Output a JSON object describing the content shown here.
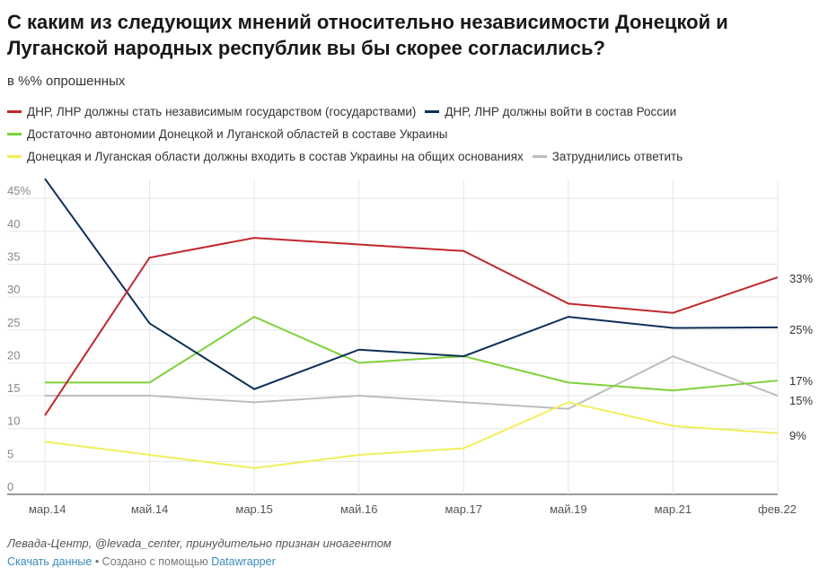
{
  "title": "С каким из следующих мнений относительно независимости Донецкой и Луганской народных республик вы бы скорее согласились?",
  "subtitle": "в %% опрошенных",
  "source": "Левада-Центр, @levada_center, принудительно признан иноагентом",
  "footer": {
    "download": "Скачать данные",
    "sep": " • ",
    "created": "Создано с помощью ",
    "tool": "Datawrapper"
  },
  "chart_data": {
    "type": "line",
    "categories": [
      "мар.14",
      "май.14",
      "мар.15",
      "май.16",
      "мар.17",
      "май.19",
      "мар.21",
      "фев.22"
    ],
    "ylim": [
      0,
      48
    ],
    "yticks": [
      0,
      5,
      10,
      15,
      20,
      25,
      30,
      35,
      40,
      45
    ],
    "ytick_labels": [
      "0",
      "5",
      "10",
      "15",
      "20",
      "25",
      "30",
      "35",
      "40",
      "45%"
    ],
    "series": [
      {
        "name": "ДНР, ЛНР должны стать независимым государством (государствами)",
        "color": "#c0282d",
        "values": [
          12,
          36,
          39,
          38,
          37,
          29,
          27.6,
          33
        ],
        "end_label": "33%"
      },
      {
        "name": "ДНР, ЛНР должны войти в состав России",
        "color": "#0d2f57",
        "values": [
          48,
          26,
          16,
          22,
          21,
          27,
          25.3,
          25.4
        ],
        "end_label": "25%"
      },
      {
        "name": "Достаточно автономии Донецкой и Луганской областей в составе Украины",
        "color": "#7ed13a",
        "values": [
          17,
          17,
          27,
          20,
          21,
          17,
          15.8,
          17.3
        ],
        "end_label": "17%"
      },
      {
        "name": "Донецкая и Луганская области должны входить в состав Украины на общих основаниях",
        "color": "#f1ee5a",
        "values": [
          8,
          6,
          4,
          6,
          7,
          14,
          10.4,
          9.3
        ],
        "end_label": "9%"
      },
      {
        "name": "Затруднились ответить",
        "color": "#bdbdbd",
        "values": [
          15,
          15,
          14,
          15,
          14,
          13,
          21,
          15
        ],
        "end_label": "15%"
      }
    ]
  }
}
